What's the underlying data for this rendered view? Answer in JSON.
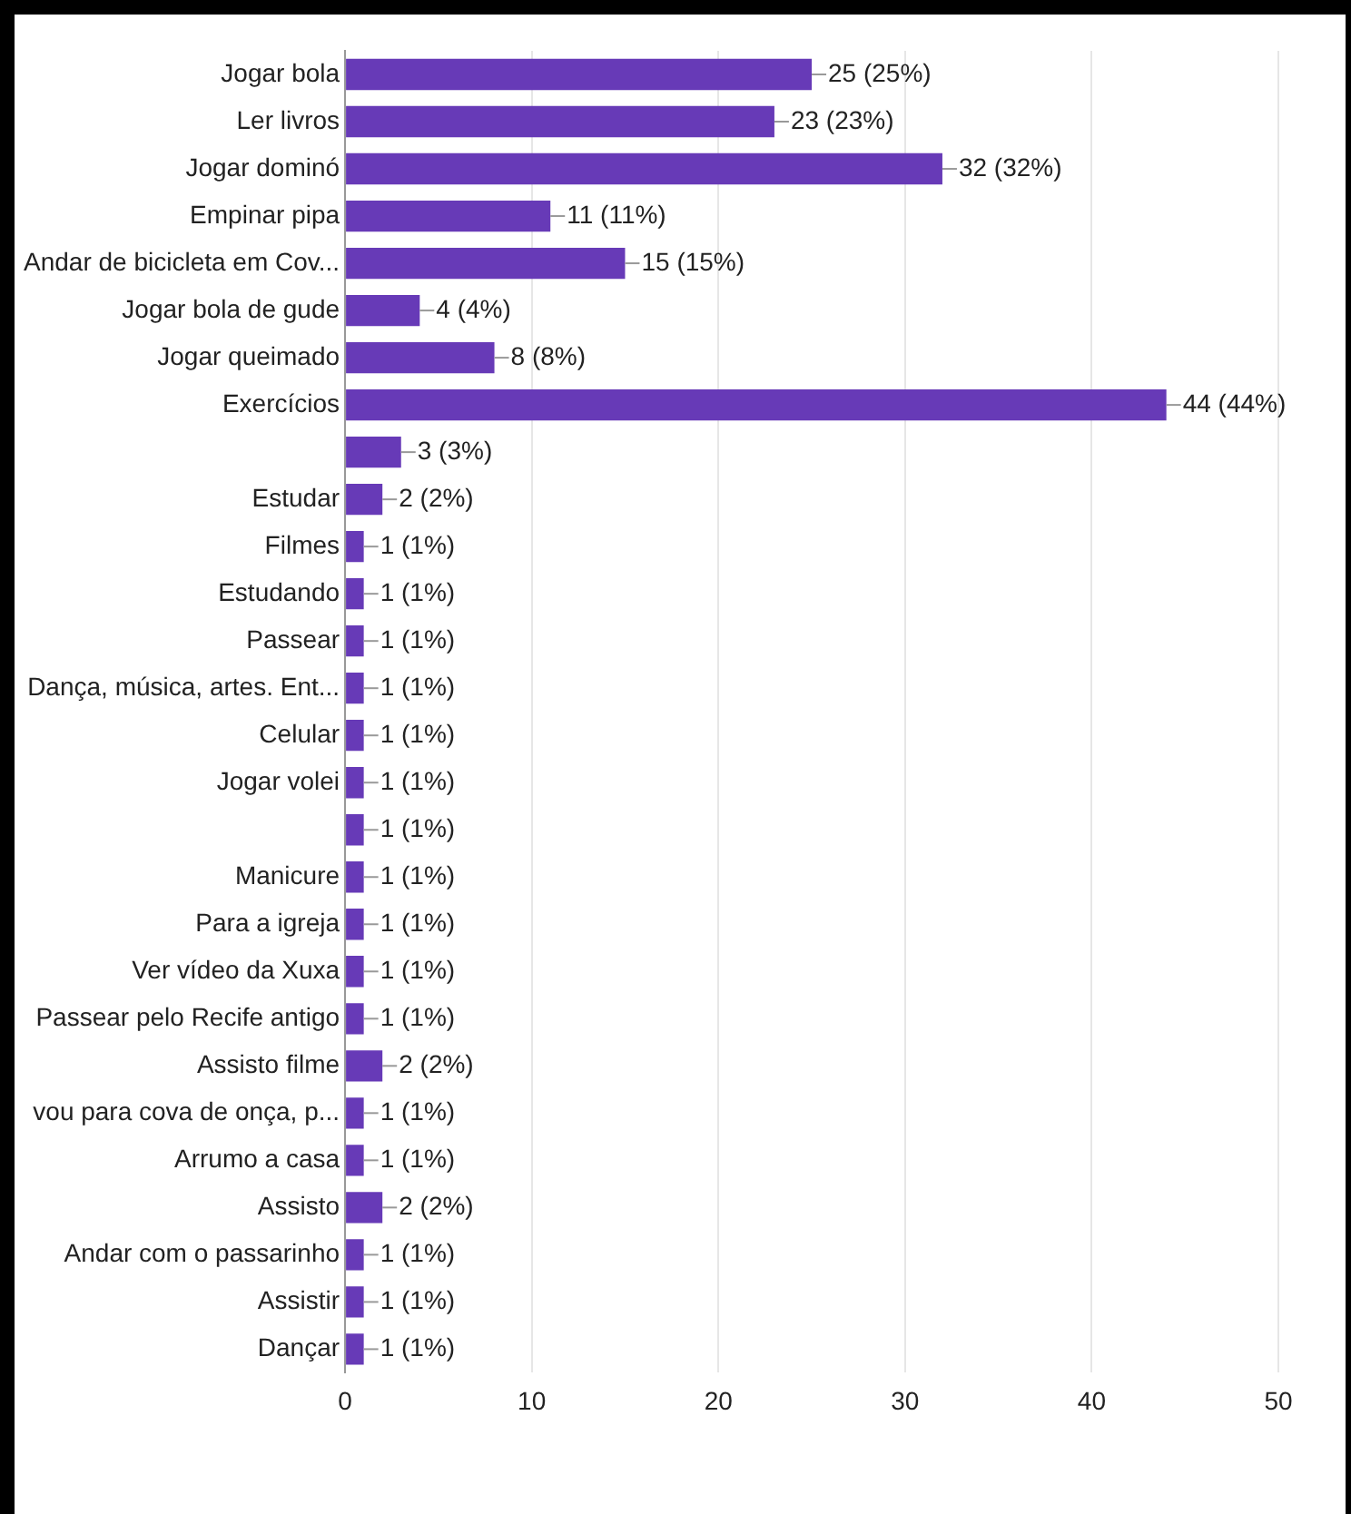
{
  "chart_data": {
    "type": "bar",
    "orientation": "horizontal",
    "grid": "x",
    "color": "#673ab7",
    "categories": [
      "Jogar bola",
      "Ler livros",
      "Jogar dominó",
      "Empinar pipa",
      "Andar de bicicleta em Cov...",
      "Jogar bola de gude",
      "Jogar queimado",
      "Exercícios",
      null,
      "Estudar",
      "Filmes",
      "Estudando",
      "Passear",
      "Dança, música, artes. Ent...",
      "Celular",
      "Jogar volei",
      null,
      "Manicure",
      "Para a igreja",
      "Ver vídeo da Xuxa",
      "Passear pelo Recife antigo",
      "Assisto filme",
      "vou para cova de onça, p...",
      "Arrumo a casa",
      "Assisto",
      "Andar com o passarinho",
      "Assistir",
      "Dançar"
    ],
    "values": [
      25,
      23,
      32,
      11,
      15,
      4,
      8,
      44,
      3,
      2,
      1,
      1,
      1,
      1,
      1,
      1,
      1,
      1,
      1,
      1,
      1,
      2,
      1,
      1,
      2,
      1,
      1,
      1
    ],
    "value_labels": [
      "25 (25%)",
      "23 (23%)",
      "32 (32%)",
      "11 (11%)",
      "15 (15%)",
      "4 (4%)",
      "8 (8%)",
      "44 (44%)",
      "3 (3%)",
      "2 (2%)",
      "1 (1%)",
      "1 (1%)",
      "1 (1%)",
      "1 (1%)",
      "1 (1%)",
      "1 (1%)",
      "1 (1%)",
      "1 (1%)",
      "1 (1%)",
      "1 (1%)",
      "1 (1%)",
      "2 (2%)",
      "1 (1%)",
      "1 (1%)",
      "2 (2%)",
      "1 (1%)",
      "1 (1%)",
      "1 (1%)"
    ],
    "xlim": [
      0,
      50
    ],
    "xticks": [
      0,
      10,
      20,
      30,
      40,
      50
    ]
  }
}
